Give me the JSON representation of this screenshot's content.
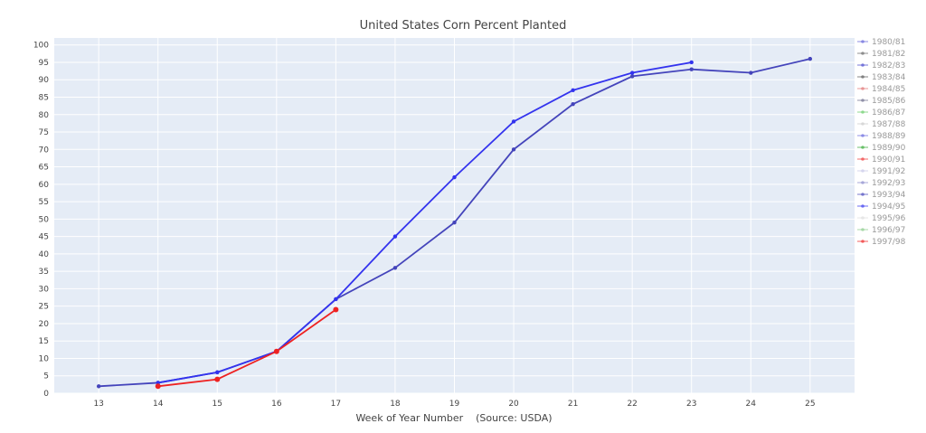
{
  "chart_data": {
    "type": "line",
    "title": "United States Corn Percent Planted",
    "xlabel": "Week of Year Number    (Source: USDA)",
    "ylabel": "",
    "xlim": [
      12.25,
      25.75
    ],
    "ylim": [
      0,
      102
    ],
    "xticks": [
      13,
      14,
      15,
      16,
      17,
      18,
      19,
      20,
      21,
      22,
      23,
      24,
      25
    ],
    "yticks": [
      0,
      5,
      10,
      15,
      20,
      25,
      30,
      35,
      40,
      45,
      50,
      55,
      60,
      65,
      70,
      75,
      80,
      85,
      90,
      95,
      100
    ],
    "grid": true,
    "legend_position": "right",
    "series": [
      {
        "name": "1980/81",
        "color": "#5f5fd8",
        "visible": false,
        "x": [],
        "y": []
      },
      {
        "name": "1981/82",
        "color": "#666666",
        "visible": false,
        "x": [],
        "y": []
      },
      {
        "name": "1982/83",
        "color": "#4444cc",
        "visible": false,
        "x": [],
        "y": []
      },
      {
        "name": "1983/84",
        "color": "#555555",
        "visible": false,
        "x": [],
        "y": []
      },
      {
        "name": "1984/85",
        "color": "#e07070",
        "visible": false,
        "x": [],
        "y": []
      },
      {
        "name": "1985/86",
        "color": "#6a6a8a",
        "visible": false,
        "x": [],
        "y": []
      },
      {
        "name": "1986/87",
        "color": "#66cc66",
        "visible": false,
        "x": [],
        "y": []
      },
      {
        "name": "1987/88",
        "color": "#cccccc",
        "visible": false,
        "x": [],
        "y": []
      },
      {
        "name": "1988/89",
        "color": "#6666dd",
        "visible": false,
        "x": [],
        "y": []
      },
      {
        "name": "1989/90",
        "color": "#33aa33",
        "visible": false,
        "x": [],
        "y": []
      },
      {
        "name": "1990/91",
        "color": "#ee3333",
        "visible": false,
        "x": [],
        "y": []
      },
      {
        "name": "1991/92",
        "color": "#c8c8e8",
        "visible": false,
        "x": [],
        "y": []
      },
      {
        "name": "1992/93",
        "color": "#8888cc",
        "visible": false,
        "x": [],
        "y": []
      },
      {
        "name": "1993/94",
        "color": "#4444bb",
        "visible": true,
        "x": [
          13,
          14,
          15,
          16,
          17,
          18,
          19,
          20,
          21,
          22,
          23,
          24,
          25
        ],
        "y": [
          2,
          3,
          6,
          12,
          27,
          36,
          49,
          70,
          83,
          91,
          93,
          92,
          96
        ]
      },
      {
        "name": "1994/95",
        "color": "#3333ee",
        "visible": true,
        "x": [
          14,
          15,
          16,
          17,
          18,
          19,
          20,
          21,
          22,
          23
        ],
        "y": [
          3,
          6,
          12,
          27,
          45,
          62,
          78,
          87,
          92,
          95
        ]
      },
      {
        "name": "1995/96",
        "color": "#dddddd",
        "visible": false,
        "x": [],
        "y": []
      },
      {
        "name": "1996/97",
        "color": "#88cc88",
        "visible": false,
        "x": [],
        "y": []
      },
      {
        "name": "1997/98",
        "color": "#ee2222",
        "visible": true,
        "x": [
          14,
          15,
          16,
          17
        ],
        "y": [
          2,
          4,
          12,
          24
        ]
      }
    ]
  },
  "colors": {
    "plot_background": "#e5ecf6",
    "grid": "#ffffff",
    "text": "#444444"
  }
}
